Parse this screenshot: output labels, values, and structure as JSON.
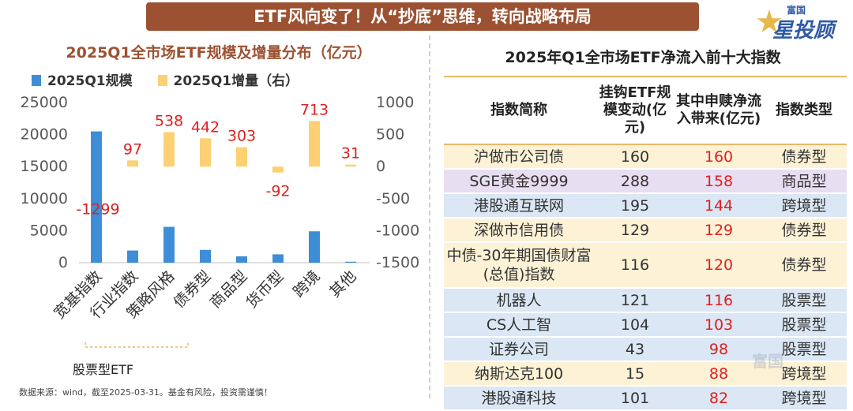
{
  "banner": {
    "title": "ETF风向变了！从“抄底”思维，转向战略布局"
  },
  "logo": {
    "small": "富国",
    "big": "星投顾"
  },
  "colors": {
    "scale_bar": "#3d8ed6",
    "increment_bar": "#fdd074",
    "label_red": "#e02020",
    "title_brown": "#9c5232",
    "row_yellow": "#fdf2d6",
    "row_purple": "#e8def2",
    "row_blue": "#dbe7f4"
  },
  "chart_data": {
    "type": "bar",
    "title": "2025Q1全市场ETF规模及增量分布（亿元）",
    "categories": [
      "宽基指数",
      "行业指数",
      "策略风格",
      "债券型",
      "商品型",
      "货币型",
      "跨境",
      "其他"
    ],
    "series": [
      {
        "name": "2025Q1规模",
        "axis": "left",
        "values": [
          20500,
          1900,
          5600,
          2000,
          1000,
          1300,
          4900,
          150
        ]
      },
      {
        "name": "2025Q1增量（右）",
        "axis": "right",
        "values": [
          -1299,
          97,
          538,
          442,
          303,
          -92,
          713,
          31
        ]
      }
    ],
    "data_labels": [
      "-1299",
      "97",
      "538",
      "442",
      "303",
      "-92",
      "713",
      "31"
    ],
    "left_axis": {
      "ylim": [
        0,
        25000
      ],
      "ticks": [
        "0",
        "5000",
        "10000",
        "15000",
        "20000",
        "25000"
      ]
    },
    "right_axis": {
      "ylim": [
        -1500,
        1000
      ],
      "ticks": [
        "-1500",
        "-1000",
        "-500",
        "0",
        "500",
        "1000"
      ]
    },
    "group_label": "股票型ETF"
  },
  "footer": {
    "source": "数据来源：wind，截至2025-03-31。基金有风险，投资需谨慎！"
  },
  "table": {
    "title": "2025年Q1全市场ETF净流入前十大指数",
    "headers": [
      "指数简称",
      "挂钩ETF规模变动(亿元)",
      "其中申赎净流入带来(亿元)",
      "指数类型"
    ],
    "rows": [
      {
        "name": "沪做市公司债",
        "change": "160",
        "inflow": "160",
        "type": "债券型",
        "bg": "#fdf2d6"
      },
      {
        "name": "SGE黄金9999",
        "change": "288",
        "inflow": "158",
        "type": "商品型",
        "bg": "#e8def2"
      },
      {
        "name": "港股通互联网",
        "change": "195",
        "inflow": "144",
        "type": "跨境型",
        "bg": "#dbe7f4"
      },
      {
        "name": "深做市信用债",
        "change": "129",
        "inflow": "129",
        "type": "债券型",
        "bg": "#fdf2d6"
      },
      {
        "name": "中债-30年期国债财富(总值)指数",
        "change": "116",
        "inflow": "120",
        "type": "债券型",
        "bg": "#fdf2d6",
        "tall": true
      },
      {
        "name": "机器人",
        "change": "121",
        "inflow": "116",
        "type": "股票型",
        "bg": "#dbe7f4"
      },
      {
        "name": "CS人工智",
        "change": "104",
        "inflow": "103",
        "type": "股票型",
        "bg": "#dbe7f4"
      },
      {
        "name": "证券公司",
        "change": "43",
        "inflow": "98",
        "type": "股票型",
        "bg": "#dbe7f4"
      },
      {
        "name": "纳斯达克100",
        "change": "15",
        "inflow": "88",
        "type": "跨境型",
        "bg": "#fdf2d6"
      },
      {
        "name": "港股通科技",
        "change": "101",
        "inflow": "82",
        "type": "跨境型",
        "bg": "#dbe7f4"
      }
    ]
  },
  "watermark": "富国"
}
